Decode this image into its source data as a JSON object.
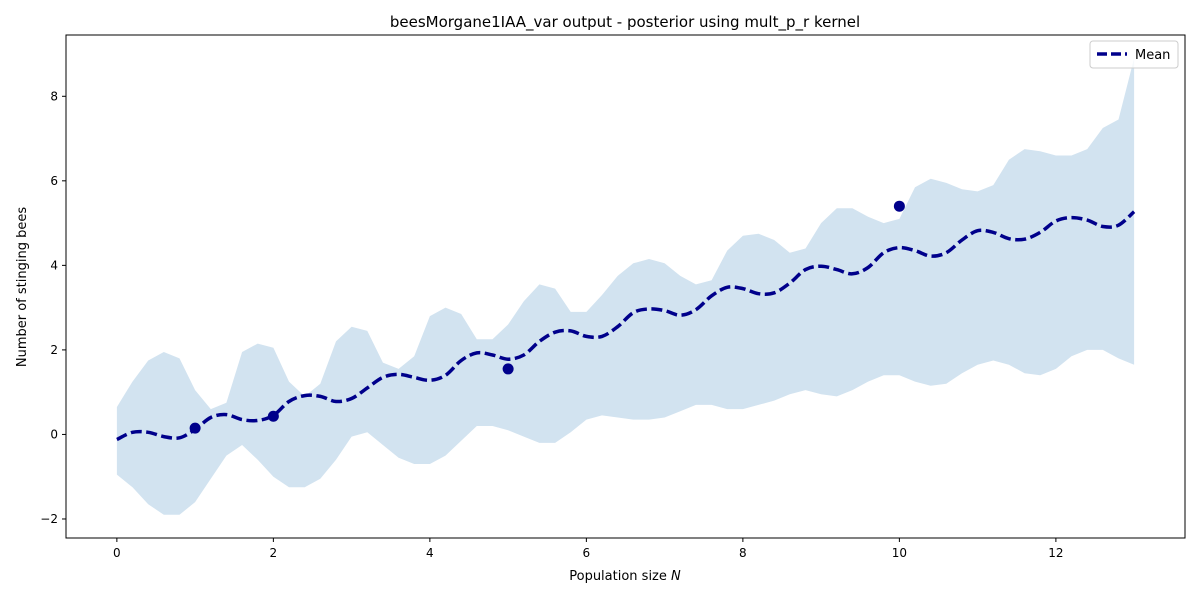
{
  "chart_data": {
    "type": "line",
    "title": "beesMorgane1IAA_var output - posterior using mult_p_r kernel",
    "xlabel": "Population size",
    "xlabel_var": "N",
    "ylabel": "Number of stinging bees",
    "xlim": [
      -0.65,
      13.65
    ],
    "ylim": [
      -2.45,
      9.45
    ],
    "xticks": [
      0,
      2,
      4,
      6,
      8,
      10,
      12
    ],
    "yticks": [
      -2,
      0,
      2,
      4,
      6,
      8
    ],
    "grid": false,
    "legend": {
      "position": "top-right",
      "entries": [
        "Mean"
      ]
    },
    "colors": {
      "mean": "#00008b",
      "band": "#d2e3f0",
      "points": "#00008b"
    },
    "x": [
      0.0,
      0.2,
      0.4,
      0.6,
      0.8,
      1.0,
      1.2,
      1.4,
      1.6,
      1.8,
      2.0,
      2.2,
      2.4,
      2.6,
      2.8,
      3.0,
      3.2,
      3.4,
      3.6,
      3.8,
      4.0,
      4.2,
      4.4,
      4.6,
      4.8,
      5.0,
      5.2,
      5.4,
      5.6,
      5.8,
      6.0,
      6.2,
      6.4,
      6.6,
      6.8,
      7.0,
      7.2,
      7.4,
      7.6,
      7.8,
      8.0,
      8.2,
      8.4,
      8.6,
      8.8,
      9.0,
      9.2,
      9.4,
      9.6,
      9.8,
      10.0,
      10.2,
      10.4,
      10.6,
      10.8,
      11.0,
      11.2,
      11.4,
      11.6,
      11.8,
      12.0,
      12.2,
      12.4,
      12.6,
      12.8,
      13.0
    ],
    "series": [
      {
        "name": "Mean",
        "style": "dashed",
        "values": [
          -0.12,
          0.05,
          0.05,
          -0.05,
          -0.08,
          0.12,
          0.4,
          0.47,
          0.35,
          0.33,
          0.45,
          0.78,
          0.92,
          0.9,
          0.78,
          0.85,
          1.1,
          1.35,
          1.42,
          1.35,
          1.28,
          1.4,
          1.75,
          1.93,
          1.88,
          1.78,
          1.88,
          2.2,
          2.42,
          2.45,
          2.32,
          2.32,
          2.55,
          2.88,
          2.97,
          2.93,
          2.82,
          2.95,
          3.28,
          3.48,
          3.45,
          3.33,
          3.35,
          3.58,
          3.9,
          3.98,
          3.9,
          3.8,
          3.95,
          4.3,
          4.42,
          4.35,
          4.22,
          4.3,
          4.6,
          4.82,
          4.78,
          4.63,
          4.62,
          4.78,
          5.05,
          5.13,
          5.07,
          4.92,
          4.95,
          5.27
        ]
      }
    ],
    "band": {
      "upper": [
        0.65,
        1.25,
        1.75,
        1.95,
        1.8,
        1.05,
        0.6,
        0.75,
        1.95,
        2.15,
        2.05,
        1.25,
        0.9,
        1.2,
        2.2,
        2.55,
        2.45,
        1.7,
        1.55,
        1.85,
        2.8,
        3.0,
        2.85,
        2.25,
        2.25,
        2.6,
        3.15,
        3.55,
        3.45,
        2.9,
        2.9,
        3.3,
        3.75,
        4.05,
        4.15,
        4.05,
        3.75,
        3.55,
        3.65,
        4.35,
        4.7,
        4.75,
        4.6,
        4.3,
        4.4,
        5.0,
        5.35,
        5.35,
        5.15,
        5.0,
        5.1,
        5.85,
        6.05,
        5.95,
        5.8,
        5.75,
        5.9,
        6.5,
        6.75,
        6.7,
        6.6,
        6.6,
        6.75,
        7.25,
        7.45,
        8.9
      ],
      "lower": [
        -0.95,
        -1.25,
        -1.65,
        -1.9,
        -1.9,
        -1.6,
        -1.05,
        -0.5,
        -0.25,
        -0.6,
        -1.0,
        -1.25,
        -1.25,
        -1.05,
        -0.6,
        -0.05,
        0.05,
        -0.25,
        -0.55,
        -0.7,
        -0.7,
        -0.5,
        -0.15,
        0.2,
        0.2,
        0.1,
        -0.05,
        -0.2,
        -0.2,
        0.05,
        0.35,
        0.45,
        0.4,
        0.35,
        0.35,
        0.4,
        0.55,
        0.7,
        0.7,
        0.6,
        0.6,
        0.7,
        0.8,
        0.95,
        1.05,
        0.95,
        0.9,
        1.05,
        1.25,
        1.4,
        1.4,
        1.25,
        1.15,
        1.2,
        1.45,
        1.65,
        1.75,
        1.65,
        1.45,
        1.4,
        1.55,
        1.85,
        2.0,
        2.0,
        1.8,
        1.65
      ]
    },
    "observations": {
      "x": [
        1,
        2,
        5,
        10
      ],
      "y": [
        0.15,
        0.43,
        1.55,
        5.4
      ]
    }
  }
}
